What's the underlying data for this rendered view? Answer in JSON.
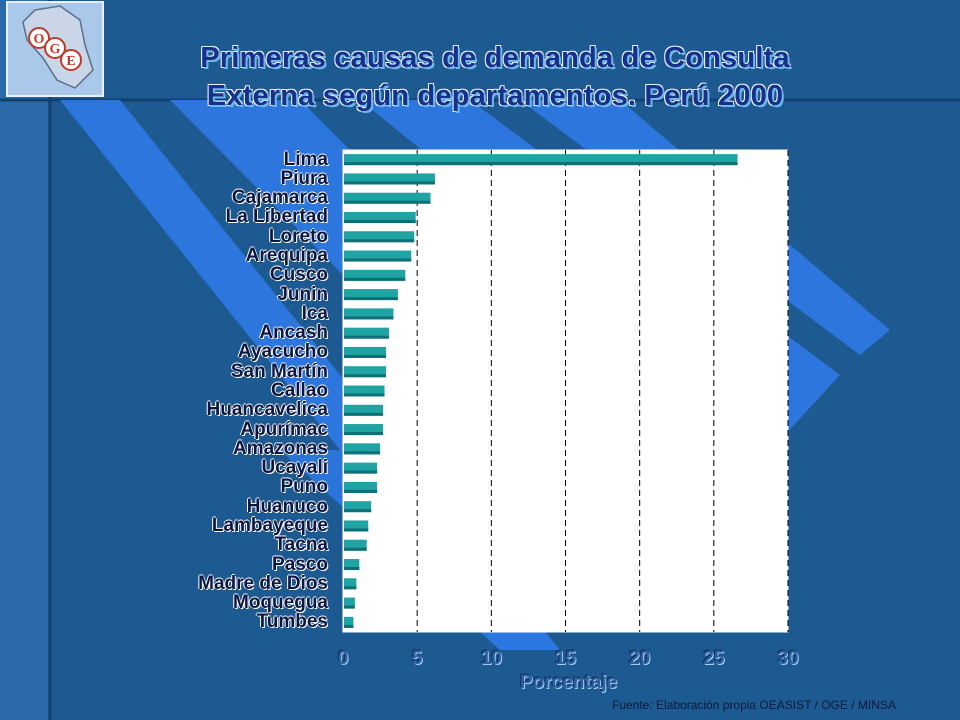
{
  "title_line1": "Primeras causas de demanda de Consulta",
  "title_line2": "Externa según departamentos. Perú 2000",
  "source": "Fuente: Elaboración propia OEASIST / OGE / MINSA",
  "logo": {
    "letters": [
      "O",
      "G",
      "E"
    ],
    "icon": "peru-map-logo-icon"
  },
  "colors": {
    "bar": "#1fa3a3",
    "bar_dark": "#0e6f74",
    "plot_bg": "#ffffff",
    "background": "#1d5a92",
    "stripe": "#2e78e2"
  },
  "chart_data": {
    "type": "bar",
    "orientation": "horizontal",
    "title": "Primeras causas de demanda de Consulta Externa según departamentos. Perú 2000",
    "xlabel": "Porcentaje",
    "ylabel": "",
    "xlim": [
      0,
      30
    ],
    "xticks": [
      0,
      5,
      10,
      15,
      20,
      25,
      30
    ],
    "grid": "vertical dashed",
    "categories": [
      "Lima",
      "Piura",
      "Cajamarca",
      "La Libertad",
      "Loreto",
      "Arequipa",
      "Cusco",
      "Junin",
      "Ica",
      "Ancash",
      "Ayacucho",
      "San Martín",
      "Callao",
      "Huancavelica",
      "Apurímac",
      "Amazonas",
      "Ucayali",
      "Puno",
      "Huanuco",
      "Lambayeque",
      "Tacna",
      "Pasco",
      "Madre de Dios",
      "Moquegua",
      "Tumbes"
    ],
    "values": [
      26.6,
      6.2,
      5.9,
      4.9,
      4.8,
      4.6,
      4.2,
      3.7,
      3.4,
      3.1,
      2.9,
      2.9,
      2.8,
      2.7,
      2.7,
      2.5,
      2.3,
      2.3,
      1.9,
      1.7,
      1.6,
      1.1,
      0.9,
      0.8,
      0.7
    ]
  }
}
